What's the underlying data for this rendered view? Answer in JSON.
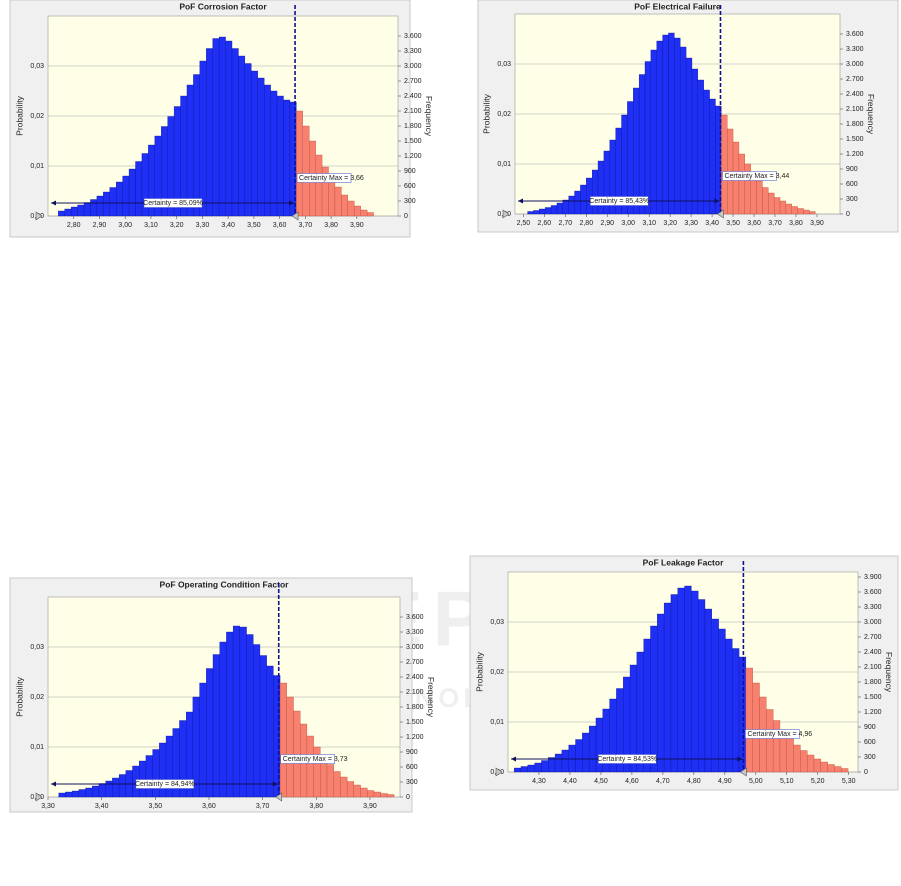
{
  "watermark": {
    "title": "SCITEPRESS",
    "subtitle": "SCIENCE AND TECHNOLOGY PUBLICATIONS"
  },
  "chart_data": [
    {
      "type": "histogram",
      "title": "PoF Corrosion Factor",
      "ylabel": "Probability",
      "y2label": "Frequency",
      "color": "#1f2ff5",
      "tail_color": "#f8806e",
      "grid": true,
      "certainty_max": 3.66,
      "certainty_label": "Certainty = 85,09%",
      "certainty_max_label": "Certainty Max = 3,66",
      "bins": [
        2.74,
        2.765,
        2.79,
        2.815,
        2.84,
        2.865,
        2.89,
        2.915,
        2.94,
        2.965,
        2.99,
        3.015,
        3.04,
        3.065,
        3.09,
        3.115,
        3.14,
        3.165,
        3.19,
        3.215,
        3.24,
        3.265,
        3.29,
        3.315,
        3.34,
        3.365,
        3.39,
        3.415,
        3.44,
        3.465,
        3.49,
        3.515,
        3.54,
        3.565,
        3.59,
        3.615,
        3.64,
        3.665,
        3.69,
        3.715,
        3.74,
        3.765,
        3.79,
        3.815,
        3.84,
        3.865,
        3.89,
        3.915,
        3.94,
        3.965
      ],
      "values": [
        0.001,
        0.0014,
        0.0018,
        0.0022,
        0.0027,
        0.0033,
        0.004,
        0.0048,
        0.0057,
        0.0068,
        0.008,
        0.0094,
        0.0109,
        0.0125,
        0.0142,
        0.016,
        0.0179,
        0.0199,
        0.0219,
        0.024,
        0.0262,
        0.0283,
        0.031,
        0.0335,
        0.0355,
        0.0358,
        0.035,
        0.0335,
        0.032,
        0.0305,
        0.029,
        0.0276,
        0.0262,
        0.025,
        0.024,
        0.0232,
        0.0228,
        0.021,
        0.018,
        0.015,
        0.0122,
        0.0098,
        0.0077,
        0.0058,
        0.0042,
        0.003,
        0.002,
        0.0012,
        0.0007
      ],
      "xlim": [
        2.7,
        4.06
      ],
      "xticks": [
        {
          "value": 2.8,
          "label": "2,80"
        },
        {
          "value": 2.9,
          "label": "2,90"
        },
        {
          "value": 3.0,
          "label": "3,00"
        },
        {
          "value": 3.1,
          "label": "3,10"
        },
        {
          "value": 3.2,
          "label": "3,20"
        },
        {
          "value": 3.3,
          "label": "3,30"
        },
        {
          "value": 3.4,
          "label": "3,40"
        },
        {
          "value": 3.5,
          "label": "3,50"
        },
        {
          "value": 3.6,
          "label": "3,60"
        },
        {
          "value": 3.7,
          "label": "3,70"
        },
        {
          "value": 3.8,
          "label": "3,80"
        },
        {
          "value": 3.9,
          "label": "3,90"
        }
      ],
      "ylim": [
        0,
        0.04
      ],
      "yticks": [
        {
          "value": 0,
          "label": "0,00"
        },
        {
          "value": 0.01,
          "label": "0,01"
        },
        {
          "value": 0.02,
          "label": "0,02"
        },
        {
          "value": 0.03,
          "label": "0,03"
        }
      ],
      "y2lim": [
        0,
        4000
      ],
      "y2ticks": [
        0,
        300,
        600,
        900,
        {
          "value": 1200,
          "label": "1.200"
        },
        {
          "value": 1500,
          "label": "1.500"
        },
        {
          "value": 1800,
          "label": "1.800"
        },
        {
          "value": 2100,
          "label": "2.100"
        },
        {
          "value": 2400,
          "label": "2.400"
        },
        {
          "value": 2700,
          "label": "2.700"
        },
        {
          "value": 3000,
          "label": "3.000"
        },
        {
          "value": 3300,
          "label": "3.300"
        },
        {
          "value": 3600,
          "label": "3.600"
        }
      ]
    },
    {
      "type": "histogram",
      "title": "PoF Electrical Failure",
      "ylabel": "Probability",
      "y2label": "Frequency",
      "color": "#1f2ff5",
      "tail_color": "#f8806e",
      "grid": true,
      "certainty_max": 3.44,
      "certainty_label": "Certainty = 85,43%",
      "certainty_max_label": "Certainty Max = 3,44",
      "bins": [
        2.52,
        2.548,
        2.576,
        2.604,
        2.632,
        2.66,
        2.688,
        2.716,
        2.744,
        2.772,
        2.8,
        2.828,
        2.856,
        2.884,
        2.912,
        2.94,
        2.968,
        2.996,
        3.024,
        3.052,
        3.08,
        3.108,
        3.136,
        3.164,
        3.192,
        3.22,
        3.248,
        3.276,
        3.304,
        3.332,
        3.36,
        3.388,
        3.416,
        3.444,
        3.472,
        3.5,
        3.528,
        3.556,
        3.584,
        3.612,
        3.64,
        3.668,
        3.696,
        3.724,
        3.752,
        3.78,
        3.808,
        3.836,
        3.864,
        3.892
      ],
      "values": [
        0.0005,
        0.0007,
        0.001,
        0.0013,
        0.0017,
        0.0022,
        0.0028,
        0.0036,
        0.0046,
        0.0058,
        0.0072,
        0.0088,
        0.0106,
        0.0126,
        0.0148,
        0.0172,
        0.0198,
        0.0225,
        0.0252,
        0.0279,
        0.0305,
        0.0328,
        0.0346,
        0.0358,
        0.0362,
        0.0352,
        0.0334,
        0.0312,
        0.029,
        0.0268,
        0.0248,
        0.023,
        0.0216,
        0.0198,
        0.017,
        0.0144,
        0.012,
        0.01,
        0.0082,
        0.0066,
        0.0053,
        0.0042,
        0.0033,
        0.0026,
        0.002,
        0.0015,
        0.0011,
        0.0008,
        0.0005
      ],
      "xlim": [
        2.46,
        4.01
      ],
      "xticks": [
        {
          "value": 2.5,
          "label": "2,50"
        },
        {
          "value": 2.6,
          "label": "2,60"
        },
        {
          "value": 2.7,
          "label": "2,70"
        },
        {
          "value": 2.8,
          "label": "2,80"
        },
        {
          "value": 2.9,
          "label": "2,90"
        },
        {
          "value": 3.0,
          "label": "3,00"
        },
        {
          "value": 3.1,
          "label": "3,10"
        },
        {
          "value": 3.2,
          "label": "3,20"
        },
        {
          "value": 3.3,
          "label": "3,30"
        },
        {
          "value": 3.4,
          "label": "3,40"
        },
        {
          "value": 3.5,
          "label": "3,50"
        },
        {
          "value": 3.6,
          "label": "3,60"
        },
        {
          "value": 3.7,
          "label": "3,70"
        },
        {
          "value": 3.8,
          "label": "3,80"
        },
        {
          "value": 3.9,
          "label": "3,90"
        }
      ],
      "ylim": [
        0,
        0.04
      ],
      "yticks": [
        {
          "value": 0,
          "label": "0,00"
        },
        {
          "value": 0.01,
          "label": "0,01"
        },
        {
          "value": 0.02,
          "label": "0,02"
        },
        {
          "value": 0.03,
          "label": "0,03"
        }
      ],
      "y2lim": [
        0,
        4000
      ],
      "y2ticks": [
        0,
        300,
        600,
        900,
        {
          "value": 1200,
          "label": "1.200"
        },
        {
          "value": 1500,
          "label": "1.500"
        },
        {
          "value": 1800,
          "label": "1.800"
        },
        {
          "value": 2100,
          "label": "2.100"
        },
        {
          "value": 2400,
          "label": "2.400"
        },
        {
          "value": 2700,
          "label": "2.700"
        },
        {
          "value": 3000,
          "label": "3.000"
        },
        {
          "value": 3300,
          "label": "3.300"
        },
        {
          "value": 3600,
          "label": "3.600"
        }
      ]
    },
    {
      "type": "histogram",
      "title": "PoF Operating Condition Factor",
      "ylabel": "Probability",
      "y2label": "Frequency",
      "color": "#1f2ff5",
      "tail_color": "#f8806e",
      "grid": true,
      "certainty_max": 3.73,
      "certainty_label": "Certainty = 84,94%",
      "certainty_max_label": "Certainty Max = 3,73",
      "bins": [
        3.32,
        3.3325,
        3.345,
        3.3575,
        3.37,
        3.3825,
        3.395,
        3.4075,
        3.42,
        3.4325,
        3.445,
        3.4575,
        3.47,
        3.4825,
        3.495,
        3.5075,
        3.52,
        3.5325,
        3.545,
        3.5575,
        3.57,
        3.5825,
        3.595,
        3.6075,
        3.62,
        3.6325,
        3.645,
        3.6575,
        3.67,
        3.6825,
        3.695,
        3.7075,
        3.72,
        3.7325,
        3.745,
        3.7575,
        3.77,
        3.7825,
        3.795,
        3.8075,
        3.82,
        3.8325,
        3.845,
        3.8575,
        3.87,
        3.8825,
        3.895,
        3.9075,
        3.92,
        3.9325,
        3.945
      ],
      "values": [
        0.0008,
        0.001,
        0.0012,
        0.0015,
        0.0018,
        0.0022,
        0.0027,
        0.0032,
        0.0038,
        0.0045,
        0.0053,
        0.0062,
        0.0072,
        0.0083,
        0.0095,
        0.0108,
        0.0122,
        0.0137,
        0.0153,
        0.017,
        0.02,
        0.0228,
        0.0257,
        0.0285,
        0.031,
        0.033,
        0.0342,
        0.034,
        0.0325,
        0.0305,
        0.0283,
        0.0262,
        0.0243,
        0.0228,
        0.02,
        0.0172,
        0.0146,
        0.0122,
        0.01,
        0.0081,
        0.0065,
        0.0051,
        0.004,
        0.0031,
        0.0024,
        0.0018,
        0.0013,
        0.001,
        0.0007,
        0.0005
      ],
      "xlim": [
        3.3,
        3.956
      ],
      "xticks": [
        {
          "value": 3.3,
          "label": "3,30"
        },
        {
          "value": 3.4,
          "label": "3,40"
        },
        {
          "value": 3.5,
          "label": "3,50"
        },
        {
          "value": 3.6,
          "label": "3,60"
        },
        {
          "value": 3.7,
          "label": "3,70"
        },
        {
          "value": 3.8,
          "label": "3,80"
        },
        {
          "value": 3.9,
          "label": "3,90"
        }
      ],
      "ylim": [
        0,
        0.04
      ],
      "yticks": [
        {
          "value": 0,
          "label": "0,00"
        },
        {
          "value": 0.01,
          "label": "0,01"
        },
        {
          "value": 0.02,
          "label": "0,02"
        },
        {
          "value": 0.03,
          "label": "0,03"
        }
      ],
      "y2lim": [
        0,
        4000
      ],
      "y2ticks": [
        0,
        300,
        600,
        900,
        {
          "value": 1200,
          "label": "1.200"
        },
        {
          "value": 1500,
          "label": "1.500"
        },
        {
          "value": 1800,
          "label": "1.800"
        },
        {
          "value": 2100,
          "label": "2.100"
        },
        {
          "value": 2400,
          "label": "2.400"
        },
        {
          "value": 2700,
          "label": "2.700"
        },
        {
          "value": 3000,
          "label": "3.000"
        },
        {
          "value": 3300,
          "label": "3.300"
        },
        {
          "value": 3600,
          "label": "3.600"
        }
      ]
    },
    {
      "type": "histogram",
      "title": "PoF Leakage Factor",
      "ylabel": "Probability",
      "y2label": "Frequency",
      "color": "#1f2ff5",
      "tail_color": "#f8806e",
      "grid": true,
      "certainty_max": 4.96,
      "certainty_label": "Certainty = 84,53%",
      "certainty_max_label": "Certainty Max = 4,96",
      "bins": [
        4.22,
        4.242,
        4.264,
        4.286,
        4.308,
        4.33,
        4.352,
        4.374,
        4.396,
        4.418,
        4.44,
        4.462,
        4.484,
        4.506,
        4.528,
        4.55,
        4.572,
        4.594,
        4.616,
        4.638,
        4.66,
        4.682,
        4.704,
        4.726,
        4.748,
        4.77,
        4.792,
        4.814,
        4.836,
        4.858,
        4.88,
        4.902,
        4.924,
        4.946,
        4.968,
        4.99,
        5.012,
        5.034,
        5.056,
        5.078,
        5.1,
        5.122,
        5.144,
        5.166,
        5.188,
        5.21,
        5.232,
        5.254,
        5.276,
        5.298
      ],
      "values": [
        0.0008,
        0.0011,
        0.0014,
        0.0018,
        0.0023,
        0.0029,
        0.0036,
        0.0044,
        0.0054,
        0.0065,
        0.0078,
        0.0092,
        0.0108,
        0.0126,
        0.0146,
        0.0167,
        0.019,
        0.0214,
        0.024,
        0.0266,
        0.0292,
        0.0316,
        0.0338,
        0.0355,
        0.0368,
        0.0372,
        0.0362,
        0.0345,
        0.0326,
        0.0306,
        0.0286,
        0.0266,
        0.0247,
        0.023,
        0.0208,
        0.0178,
        0.015,
        0.0125,
        0.0103,
        0.0084,
        0.0068,
        0.0054,
        0.0043,
        0.0034,
        0.0026,
        0.002,
        0.0015,
        0.0011,
        0.0007
      ],
      "xlim": [
        4.2,
        5.33
      ],
      "xticks": [
        {
          "value": 4.3,
          "label": "4,30"
        },
        {
          "value": 4.4,
          "label": "4,40"
        },
        {
          "value": 4.5,
          "label": "4,50"
        },
        {
          "value": 4.6,
          "label": "4,60"
        },
        {
          "value": 4.7,
          "label": "4,70"
        },
        {
          "value": 4.8,
          "label": "4,80"
        },
        {
          "value": 4.9,
          "label": "4,90"
        },
        {
          "value": 5.0,
          "label": "5,00"
        },
        {
          "value": 5.1,
          "label": "5,10"
        },
        {
          "value": 5.2,
          "label": "5,20"
        },
        {
          "value": 5.3,
          "label": "5,30"
        }
      ],
      "ylim": [
        0,
        0.04
      ],
      "yticks": [
        {
          "value": 0,
          "label": "0,00"
        },
        {
          "value": 0.01,
          "label": "0,01"
        },
        {
          "value": 0.02,
          "label": "0,02"
        },
        {
          "value": 0.03,
          "label": "0,03"
        }
      ],
      "y2lim": [
        0,
        4000
      ],
      "y2ticks": [
        0,
        300,
        600,
        900,
        {
          "value": 1200,
          "label": "1.200"
        },
        {
          "value": 1500,
          "label": "1.500"
        },
        {
          "value": 1800,
          "label": "1.800"
        },
        {
          "value": 2100,
          "label": "2.100"
        },
        {
          "value": 2400,
          "label": "2.400"
        },
        {
          "value": 2700,
          "label": "2.700"
        },
        {
          "value": 3000,
          "label": "3.000"
        },
        {
          "value": 3300,
          "label": "3.300"
        },
        {
          "value": 3600,
          "label": "3.600"
        },
        {
          "value": 3900,
          "label": "3.900"
        }
      ]
    }
  ]
}
